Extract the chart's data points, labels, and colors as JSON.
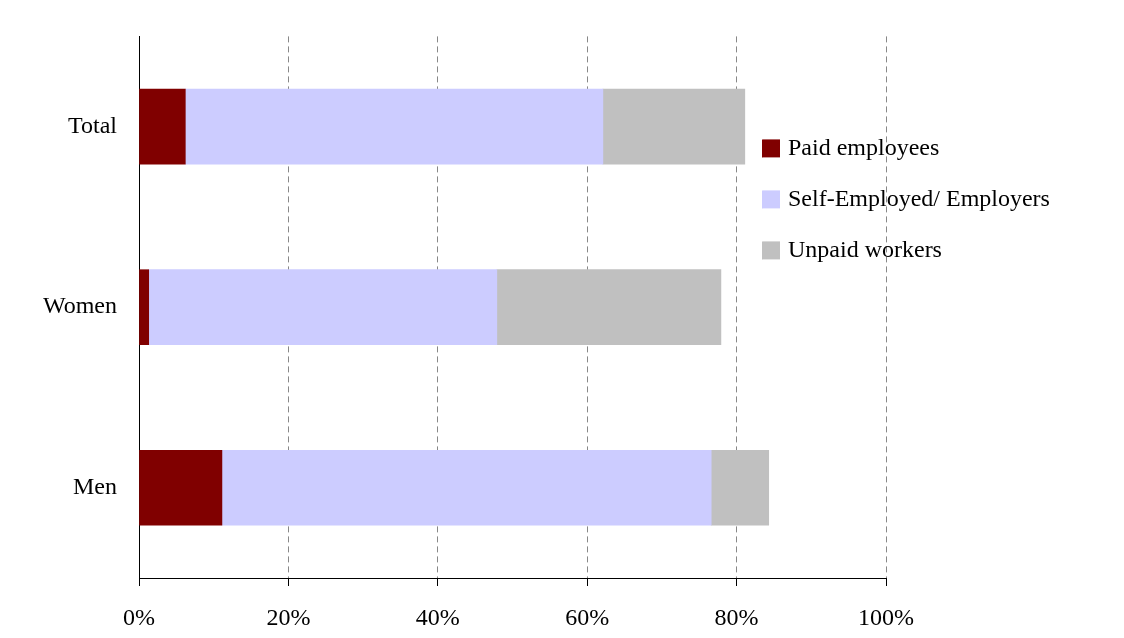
{
  "chart_data": {
    "type": "bar",
    "orientation": "horizontal",
    "stacked": true,
    "categories": [
      "Total",
      "Women",
      "Men"
    ],
    "series": [
      {
        "name": "Paid employees",
        "color": "#800000",
        "values": [
          6.2,
          1.3,
          11.1
        ]
      },
      {
        "name": "Self-Employed/ Employers",
        "color": "#ccccff",
        "values": [
          55.9,
          46.6,
          65.5
        ]
      },
      {
        "name": "Unpaid workers",
        "color": "#c0c0c0",
        "values": [
          19.0,
          30.0,
          7.7
        ]
      }
    ],
    "xlim": [
      0,
      100
    ],
    "xticks": [
      {
        "value": 0,
        "label": "0%"
      },
      {
        "value": 20,
        "label": "20%"
      },
      {
        "value": 40,
        "label": "40%"
      },
      {
        "value": 60,
        "label": "60%"
      },
      {
        "value": 80,
        "label": "80%"
      },
      {
        "value": 100,
        "label": "100%"
      }
    ],
    "grid": "x",
    "legend": "right"
  }
}
